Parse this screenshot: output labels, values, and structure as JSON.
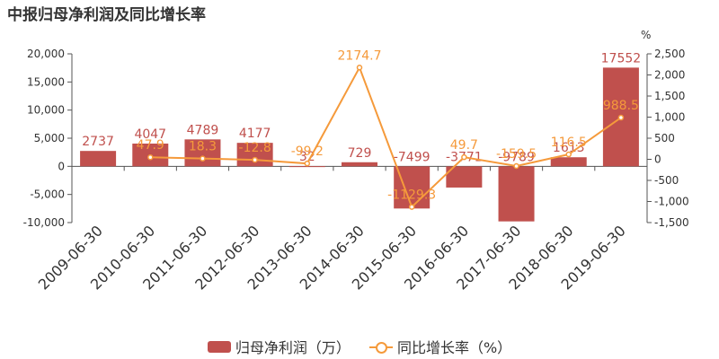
{
  "title": "中报归母净利润及同比增长率",
  "colors": {
    "bar": "#c0504d",
    "line": "#f59a3b",
    "axis": "#555555",
    "grid": "#d0d0d0",
    "text": "#333333"
  },
  "legend": {
    "bar_label": "归母净利润（万）",
    "line_label": "同比增长率（%）"
  },
  "chart_data": {
    "type": "bar",
    "title": "中报归母净利润及同比增长率",
    "categories": [
      "2009-06-30",
      "2010-06-30",
      "2011-06-30",
      "2012-06-30",
      "2013-06-30",
      "2014-06-30",
      "2015-06-30",
      "2016-06-30",
      "2017-06-30",
      "2018-06-30",
      "2019-06-30"
    ],
    "series": [
      {
        "name": "归母净利润（万）",
        "type": "bar",
        "axis": "left",
        "values": [
          2737,
          4047,
          4789,
          4177,
          32,
          729,
          -7499,
          -3771,
          -9789,
          1613,
          17552
        ],
        "labels": [
          "2737",
          "4047",
          "4789",
          "4177",
          "32",
          "729",
          "-7499",
          "-3771",
          "-9789",
          "1613",
          "17552"
        ]
      },
      {
        "name": "同比增长率（%）",
        "type": "line",
        "axis": "right",
        "values": [
          null,
          47.9,
          18.3,
          -12.8,
          -99.2,
          2174.7,
          -1129.3,
          49.7,
          -159.5,
          116.5,
          988.5
        ],
        "labels": [
          "",
          "47.9",
          "18.3",
          "-12.8",
          "-99.2",
          "2174.7",
          "-1129.3",
          "49.7",
          "-159.5",
          "116.5",
          "988.5"
        ]
      }
    ],
    "y_left": {
      "min": -10000,
      "max": 20000,
      "ticks": [
        -10000,
        -5000,
        0,
        5000,
        10000,
        15000,
        20000
      ],
      "tick_labels": [
        "-10,000",
        "-5,000",
        "0",
        "5,000",
        "10,000",
        "15,000",
        "20,000"
      ]
    },
    "y_right": {
      "unit": "%",
      "min": -1500,
      "max": 2500,
      "ticks": [
        -1500,
        -1000,
        -500,
        0,
        500,
        1000,
        1500,
        2000,
        2500
      ],
      "tick_labels": [
        "-1,500",
        "-1,000",
        "-500",
        "0",
        "500",
        "1,000",
        "1,500",
        "2,000",
        "2,500"
      ]
    },
    "grid": false,
    "legend_position": "bottom"
  }
}
